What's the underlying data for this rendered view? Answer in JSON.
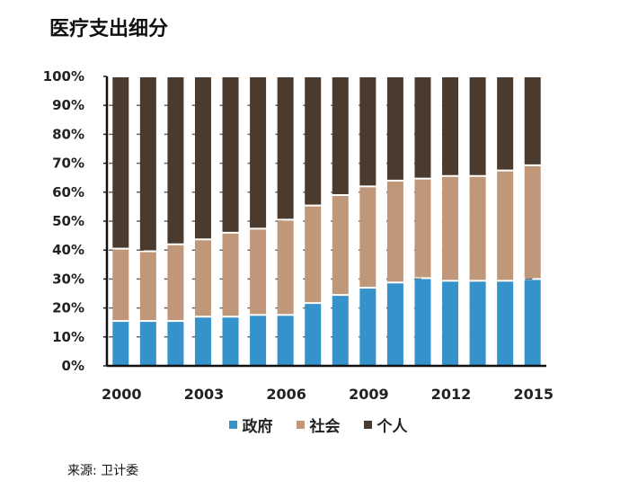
{
  "chart_data": {
    "type": "bar",
    "stacked": true,
    "percent": true,
    "title": "医疗支出细分",
    "categories": [
      "2000",
      "2001",
      "2002",
      "2003",
      "2004",
      "2005",
      "2006",
      "2007",
      "2008",
      "2009",
      "2010",
      "2011",
      "2012",
      "2013",
      "2014",
      "2015"
    ],
    "x_tick_labels": [
      "2000",
      "2003",
      "2006",
      "2009",
      "2012",
      "2015"
    ],
    "y_tick_labels": [
      "0%",
      "10%",
      "20%",
      "30%",
      "40%",
      "50%",
      "60%",
      "70%",
      "80%",
      "90%",
      "100%"
    ],
    "ylim": [
      0,
      100
    ],
    "series": [
      {
        "name": "政府",
        "color": "#3592cb",
        "values": [
          15.5,
          15.5,
          15.5,
          17,
          17,
          17.6,
          17.6,
          21.7,
          24.5,
          27,
          28.8,
          30.3,
          29.4,
          29.4,
          29.4,
          30
        ]
      },
      {
        "name": "社会",
        "color": "#c09778",
        "values": [
          25,
          24.1,
          26.5,
          26.7,
          29,
          29.8,
          32.9,
          33.7,
          34.5,
          35,
          35.2,
          34.4,
          36.2,
          36.2,
          38.1,
          39.3
        ]
      },
      {
        "name": "个人",
        "color": "#4b3a2e",
        "values": [
          59.5,
          60.4,
          58,
          56.3,
          54,
          52.6,
          49.5,
          44.6,
          41,
          38,
          36,
          35.3,
          34.4,
          34.4,
          32.5,
          30.7
        ]
      }
    ],
    "legend": "bottom",
    "grid": true,
    "source": "来源: 卫计委"
  }
}
